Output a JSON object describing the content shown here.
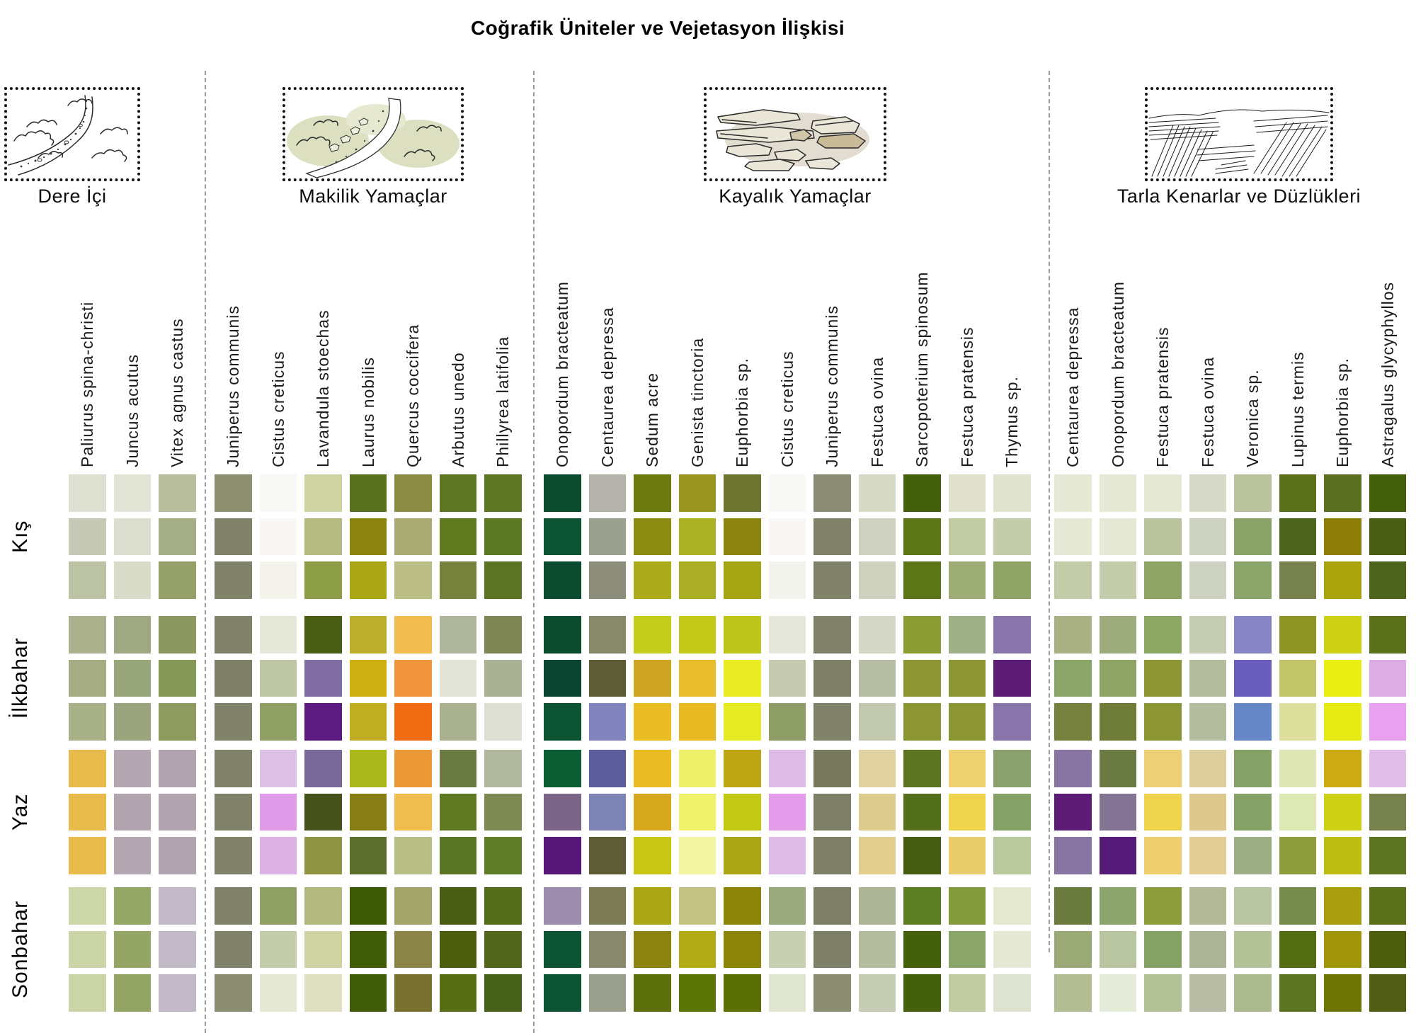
{
  "chart_data": {
    "type": "heatmap",
    "title": "Coğrafik Üniteler ve Vejetasyon İlişkisi",
    "row_groups": [
      "Kış",
      "İlkbahar",
      "Yaz",
      "Sonbahar"
    ],
    "rows_per_group": 3,
    "legend": "none",
    "sections": [
      {
        "name": "Dere İçi",
        "icon": "stream-sketch",
        "species": [
          "Paliurus spina-christi",
          "Juncus acutus",
          "Vitex agnus castus"
        ],
        "colors": [
          [
            "#dddfd0",
            "#e2e5d6",
            "#b9bf9e"
          ],
          [
            "#c6c9b6",
            "#dcded0",
            "#a5ae86"
          ],
          [
            "#bcc2a4",
            "#d9dcc8",
            "#94a067"
          ],
          [
            "#abb18c",
            "#9fa981",
            "#8b9960"
          ],
          [
            "#a6ad85",
            "#99a67a",
            "#879757"
          ],
          [
            "#a8b188",
            "#9aa57e",
            "#8d9b5e"
          ],
          [
            "#e9bb4d",
            "#b4a7b2",
            "#b2a5af"
          ],
          [
            "#e9bb4d",
            "#b3a5b0",
            "#b2a5af"
          ],
          [
            "#e9bb4d",
            "#b3a6b1",
            "#b1a4ae"
          ],
          [
            "#ccd6a8",
            "#95a765",
            "#c3bac8"
          ],
          [
            "#ccd5a7",
            "#94a565",
            "#c2bac7"
          ],
          [
            "#cbd4a6",
            "#93a464",
            "#c1b9c6"
          ]
        ]
      },
      {
        "name": "Makilik Yamaçlar",
        "icon": "maquis-sketch",
        "species": [
          "Juniperus communis",
          "Cistus creticus",
          "Lavandula stoechas",
          "Laurus nobilis",
          "Quercus coccifera",
          "Arbutus unedo",
          "Phillyrea latifolia"
        ],
        "colors": [
          [
            "#8c9070",
            "#f8f8f6",
            "#cfd2a3",
            "#5a7220",
            "#8a8b44",
            "#5e7523",
            "#5e7523"
          ],
          [
            "#80836a",
            "#f8f7f5",
            "#b5ba80",
            "#8a840e",
            "#a9aa74",
            "#5f7a1f",
            "#5c7722"
          ],
          [
            "#80836a",
            "#f3f3eb",
            "#8e9e46",
            "#a8a713",
            "#babd84",
            "#76823c",
            "#5c7524"
          ],
          [
            "#80836a",
            "#e5e8d9",
            "#4b5d12",
            "#bcae2b",
            "#f0bc50",
            "#aeb59d",
            "#7e8656"
          ],
          [
            "#7d8067",
            "#bfc6a6",
            "#7f6ca0",
            "#cfb013",
            "#f0953e",
            "#e2e4d8",
            "#a9b295"
          ],
          [
            "#80836a",
            "#90a065",
            "#5c1b80",
            "#bfae22",
            "#f26c14",
            "#a9b191",
            "#dcdfd2"
          ],
          [
            "#80836a",
            "#ddc0e6",
            "#776a9b",
            "#abb81c",
            "#eb9836",
            "#6b7b43",
            "#b1b89d"
          ],
          [
            "#80836a",
            "#e19ce9",
            "#45521b",
            "#877d15",
            "#efbd4e",
            "#5f7a22",
            "#7d8b52"
          ],
          [
            "#80836a",
            "#dcb2e5",
            "#8d9543",
            "#5c6f2d",
            "#b7bf86",
            "#5b7527",
            "#5e7b28"
          ],
          [
            "#80836a",
            "#90a065",
            "#b3b87f",
            "#3d5a06",
            "#a4a56a",
            "#4a5d12",
            "#546d1b"
          ],
          [
            "#80836a",
            "#c3ccab",
            "#cfd2a3",
            "#405c06",
            "#8c8549",
            "#4c5d0e",
            "#51661b"
          ],
          [
            "#8c8e74",
            "#e5e9d5",
            "#dfe0c2",
            "#405c06",
            "#787130",
            "#596d12",
            "#486118"
          ]
        ]
      },
      {
        "name": "Kayalık Yamaçlar",
        "icon": "rocks-sketch",
        "species": [
          "Onopordum bracteatum",
          "Centaurea depressa",
          "Sedum acre",
          "Genista tinctoria",
          "Euphorbia sp.",
          "Cistus creticus",
          "Juniperus communis",
          "Festuca ovina",
          "Sarcopoterium spinosum",
          "Festuca pratensis",
          "Thymus sp."
        ],
        "colors": [
          [
            "#0b4c30",
            "#b3b3ab",
            "#6a7a0f",
            "#9a9521",
            "#6d7531",
            "#f8f8f6",
            "#8c8c74",
            "#d7d9c7",
            "#44600b",
            "#dfe1cd",
            "#dfe3d0"
          ],
          [
            "#0c5434",
            "#9ba18f",
            "#8c8c12",
            "#abb324",
            "#8c8410",
            "#f8f7f5",
            "#80836a",
            "#cfd1c1",
            "#5c7517",
            "#c0cba4",
            "#c3ccab"
          ],
          [
            "#0b4c30",
            "#8d8d7b",
            "#abab1b",
            "#abaf25",
            "#a5a513",
            "#f3f3ed",
            "#80836a",
            "#cdd1bd",
            "#5c7517",
            "#9dad75",
            "#90a366"
          ],
          [
            "#0b4c30",
            "#88886b",
            "#c3cd1b",
            "#c3c917",
            "#bdc51b",
            "#e5e8db",
            "#80836a",
            "#d5d8c6",
            "#8d9d35",
            "#9db087",
            "#8875a9"
          ],
          [
            "#0b4430",
            "#5d5d35",
            "#cda523",
            "#e9bd2b",
            "#e9eb23",
            "#c5cab1",
            "#7d8067",
            "#b7bda4",
            "#8c9533",
            "#8c9533",
            "#5c1c75"
          ],
          [
            "#0c5434",
            "#8285bd",
            "#e9bd23",
            "#e9b923",
            "#e5eb23",
            "#8d9d65",
            "#80836a",
            "#c3c9af",
            "#8c9533",
            "#8c9533",
            "#8875a9"
          ],
          [
            "#0c5c34",
            "#5d5d9d",
            "#e9bd23",
            "#edf169",
            "#bda513",
            "#ddbde5",
            "#77795d",
            "#e1d3a1",
            "#5c7523",
            "#edd171",
            "#8ba16d"
          ],
          [
            "#7a6488",
            "#7d83b5",
            "#d5a91b",
            "#eff169",
            "#c3c913",
            "#e49be9",
            "#7d8067",
            "#ddca8d",
            "#546f1b",
            "#efd54d",
            "#85a167"
          ],
          [
            "#551878",
            "#5d5d35",
            "#c9c513",
            "#f1f5a1",
            "#a9a513",
            "#ddbde5",
            "#7d8067",
            "#e1cd8d",
            "#445d10",
            "#e9cd6d",
            "#b9c99d"
          ],
          [
            "#9d8dad",
            "#7b7b55",
            "#a9a513",
            "#c5c383",
            "#8c8408",
            "#9aa87d",
            "#7d8067",
            "#abb595",
            "#5c7d21",
            "#85993d",
            "#e5e9d1"
          ],
          [
            "#0c5434",
            "#88886d",
            "#8c8410",
            "#b3ab15",
            "#8c8408",
            "#c7d0b3",
            "#7d8067",
            "#b3bd9d",
            "#44600b",
            "#8ba569",
            "#e5e9d5"
          ],
          [
            "#0c5434",
            "#9b9f8d",
            "#5c6f0b",
            "#5c7506",
            "#5c6f04",
            "#e0e5d0",
            "#8c8e74",
            "#c7cdb5",
            "#44600b",
            "#c0cba1",
            "#dfe3d1"
          ]
        ]
      },
      {
        "name": "Tarla Kenarlar ve Düzlükleri",
        "icon": "field-sketch",
        "species": [
          "Centaurea depressa",
          "Onopordum bracteatum",
          "Festuca pratensis",
          "Festuca ovina",
          "Veronica sp.",
          "Lupinus termis",
          "Euphorbia sp.",
          "Astragalus glycyphyllos"
        ],
        "colors": [
          [
            "#e5e9d5",
            "#e5e9d5",
            "#e5e9d5",
            "#d7dac9",
            "#b9c39d",
            "#5c701b",
            "#5c6f23",
            "#44600b"
          ],
          [
            "#e5e9d5",
            "#e5e9d5",
            "#b9c39d",
            "#cdd1c1",
            "#8ba369",
            "#4c641b",
            "#8c7d07",
            "#4a5e13"
          ],
          [
            "#c3cca9",
            "#c3ccab",
            "#8da465",
            "#cdd1c1",
            "#8ba469",
            "#77814d",
            "#aaa40b",
            "#4c641b"
          ],
          [
            "#a9b185",
            "#9dab7d",
            "#8da865",
            "#c7cdb5",
            "#8885c5",
            "#8c9523",
            "#cdd113",
            "#5c6f1b"
          ],
          [
            "#8ba569",
            "#8da465",
            "#8c9533",
            "#b3bd9d",
            "#6a5dbd",
            "#c3c56b",
            "#e9ef13",
            "#deace5"
          ],
          [
            "#75813d",
            "#6f7d39",
            "#8c9533",
            "#b3bd9d",
            "#6587c5",
            "#dde09d",
            "#e5eb13",
            "#e9a1ef"
          ],
          [
            "#8875a1",
            "#6b7943",
            "#edcf75",
            "#ddcf9d",
            "#85a167",
            "#dde5b5",
            "#cda913",
            "#e1bde9"
          ],
          [
            "#5c1c75",
            "#837494",
            "#efd54d",
            "#ddc98d",
            "#85a167",
            "#dde9b5",
            "#cdd113",
            "#77814d"
          ],
          [
            "#8875a1",
            "#551b78",
            "#edcf6d",
            "#e1cd95",
            "#9dad85",
            "#8d9d3d",
            "#bdbd13",
            "#5c7521"
          ],
          [
            "#6b7b3d",
            "#8ba46b",
            "#8d9d3d",
            "#b3b997",
            "#b9c5a1",
            "#778b4d",
            "#a99e0d",
            "#5c701b"
          ],
          [
            "#9ba977",
            "#b9c5a1",
            "#85a163",
            "#abb595",
            "#b3c197",
            "#546d13",
            "#a1950c",
            "#4c5d0b"
          ],
          [
            "#b3bd93",
            "#e5ebd9",
            "#b3c197",
            "#b9bda5",
            "#abb98f",
            "#5c7521",
            "#6d7504",
            "#515d15"
          ]
        ]
      }
    ]
  }
}
